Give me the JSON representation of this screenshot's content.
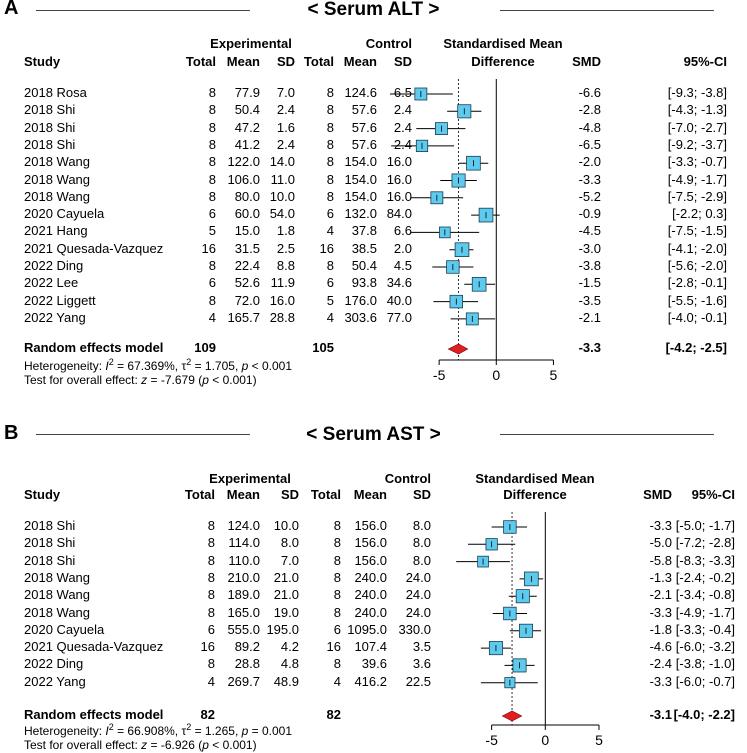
{
  "chart_data": [
    {
      "type": "forest",
      "panel": "A",
      "title": "< Serum ALT >",
      "headers": {
        "study": "Study",
        "experimental": "Experimental",
        "control": "Control",
        "total": "Total",
        "mean": "Mean",
        "sd": "SD",
        "effect_line1": "Standardised Mean",
        "effect_line2": "Difference",
        "smd": "SMD",
        "ci": "95%-CI"
      },
      "rows": [
        {
          "study": "2018 Rosa",
          "e_total": "8",
          "e_mean": "77.9",
          "e_sd": "7.0",
          "c_total": "8",
          "c_mean": "124.6",
          "c_sd": "6.5",
          "smd": -6.6,
          "lo": -9.3,
          "hi": -3.8,
          "weight": 1.0,
          "smd_text": "-6.6",
          "ci_text": "[-9.3; -3.8]"
        },
        {
          "study": "2018 Shi",
          "e_total": "8",
          "e_mean": "50.4",
          "e_sd": "2.4",
          "c_total": "8",
          "c_mean": "57.6",
          "c_sd": "2.4",
          "smd": -2.8,
          "lo": -4.3,
          "hi": -1.3,
          "weight": 1.1,
          "smd_text": "-2.8",
          "ci_text": "[-4.3; -1.3]"
        },
        {
          "study": "2018 Shi",
          "e_total": "8",
          "e_mean": "47.2",
          "e_sd": "1.6",
          "c_total": "8",
          "c_mean": "57.6",
          "c_sd": "2.4",
          "smd": -4.8,
          "lo": -7.0,
          "hi": -2.7,
          "weight": 1.0,
          "smd_text": "-4.8",
          "ci_text": "[-7.0; -2.7]"
        },
        {
          "study": "2018 Shi",
          "e_total": "8",
          "e_mean": "41.2",
          "e_sd": "2.4",
          "c_total": "8",
          "c_mean": "57.6",
          "c_sd": "2.4",
          "smd": -6.5,
          "lo": -9.2,
          "hi": -3.7,
          "weight": 0.95,
          "smd_text": "-6.5",
          "ci_text": "[-9.2; -3.7]"
        },
        {
          "study": "2018 Wang",
          "e_total": "8",
          "e_mean": "122.0",
          "e_sd": "14.0",
          "c_total": "8",
          "c_mean": "154.0",
          "c_sd": "16.0",
          "smd": -2.0,
          "lo": -3.3,
          "hi": -0.7,
          "weight": 1.15,
          "smd_text": "-2.0",
          "ci_text": "[-3.3; -0.7]"
        },
        {
          "study": "2018 Wang",
          "e_total": "8",
          "e_mean": "106.0",
          "e_sd": "11.0",
          "c_total": "8",
          "c_mean": "154.0",
          "c_sd": "16.0",
          "smd": -3.3,
          "lo": -4.9,
          "hi": -1.7,
          "weight": 1.1,
          "smd_text": "-3.3",
          "ci_text": "[-4.9; -1.7]"
        },
        {
          "study": "2018 Wang",
          "e_total": "8",
          "e_mean": "80.0",
          "e_sd": "10.0",
          "c_total": "8",
          "c_mean": "154.0",
          "c_sd": "16.0",
          "smd": -5.2,
          "lo": -7.5,
          "hi": -2.9,
          "weight": 1.0,
          "smd_text": "-5.2",
          "ci_text": "[-7.5; -2.9]"
        },
        {
          "study": "2020 Cayuela",
          "e_total": "6",
          "e_mean": "60.0",
          "e_sd": "54.0",
          "c_total": "6",
          "c_mean": "132.0",
          "c_sd": "84.0",
          "smd": -0.9,
          "lo": -2.2,
          "hi": 0.3,
          "weight": 1.15,
          "smd_text": "-0.9",
          "ci_text": "[-2.2; 0.3]"
        },
        {
          "study": "2021 Hang",
          "e_total": "5",
          "e_mean": "15.0",
          "e_sd": "1.8",
          "c_total": "4",
          "c_mean": "37.8",
          "c_sd": "6.6",
          "smd": -4.5,
          "lo": -7.5,
          "hi": -1.5,
          "weight": 0.9,
          "smd_text": "-4.5",
          "ci_text": "[-7.5; -1.5]"
        },
        {
          "study": "2021 Quesada-Vazquez",
          "e_total": "16",
          "e_mean": "31.5",
          "e_sd": "2.5",
          "c_total": "16",
          "c_mean": "38.5",
          "c_sd": "2.0",
          "smd": -3.0,
          "lo": -4.1,
          "hi": -2.0,
          "weight": 1.15,
          "smd_text": "-3.0",
          "ci_text": "[-4.1; -2.0]"
        },
        {
          "study": "2022 Ding",
          "e_total": "8",
          "e_mean": "22.4",
          "e_sd": "8.8",
          "c_total": "8",
          "c_mean": "50.4",
          "c_sd": "4.5",
          "smd": -3.8,
          "lo": -5.6,
          "hi": -2.0,
          "weight": 1.05,
          "smd_text": "-3.8",
          "ci_text": "[-5.6; -2.0]"
        },
        {
          "study": "2022 Lee",
          "e_total": "6",
          "e_mean": "52.6",
          "e_sd": "11.9",
          "c_total": "6",
          "c_mean": "93.8",
          "c_sd": "34.6",
          "smd": -1.5,
          "lo": -2.8,
          "hi": -0.1,
          "weight": 1.15,
          "smd_text": "-1.5",
          "ci_text": "[-2.8; -0.1]"
        },
        {
          "study": "2022 Liggett",
          "e_total": "8",
          "e_mean": "72.0",
          "e_sd": "16.0",
          "c_total": "5",
          "c_mean": "176.0",
          "c_sd": "40.0",
          "smd": -3.5,
          "lo": -5.5,
          "hi": -1.6,
          "weight": 1.05,
          "smd_text": "-3.5",
          "ci_text": "[-5.5; -1.6]"
        },
        {
          "study": "2022 Yang",
          "e_total": "4",
          "e_mean": "165.7",
          "e_sd": "28.8",
          "c_total": "4",
          "c_mean": "303.6",
          "c_sd": "77.0",
          "smd": -2.1,
          "lo": -4.0,
          "hi": -0.1,
          "weight": 1.0,
          "smd_text": "-2.1",
          "ci_text": "[-4.0; -0.1]"
        }
      ],
      "summary": {
        "label": "Random effects model",
        "e_total": "109",
        "c_total": "105",
        "smd": -3.3,
        "lo": -4.2,
        "hi": -2.5,
        "smd_text": "-3.3",
        "ci_text": "[-4.2; -2.5]"
      },
      "heterogeneity": {
        "prefix": "Heterogeneity: ",
        "i2_symbol": "I",
        "sup": "2",
        "i2_value": " = 67.369%, ",
        "tau_symbol": "τ",
        "tau_value": " = 1.705, ",
        "p_symbol": "p",
        "p_value": " < 0.001"
      },
      "overall_effect": {
        "prefix": "Test for overall effect: ",
        "z_symbol": "z",
        "z_value": " = -7.679 (",
        "p_symbol": "p",
        "p_value": " < 0.001)"
      },
      "xlim": [
        -10,
        6.8
      ],
      "ticks": [
        -5,
        0,
        5
      ],
      "tick_labels": [
        "-5",
        "0",
        "5"
      ]
    },
    {
      "type": "forest",
      "panel": "B",
      "title": "< Serum AST >",
      "headers": {
        "study": "Study",
        "experimental": "Experimental",
        "control": "Control",
        "total": "Total",
        "mean": "Mean",
        "sd": "SD",
        "effect_line1": "Standardised Mean",
        "effect_line2": "Difference",
        "smd": "SMD",
        "ci": "95%-CI"
      },
      "rows": [
        {
          "study": "2018 Shi",
          "e_total": "8",
          "e_mean": "124.0",
          "e_sd": "10.0",
          "c_total": "8",
          "c_mean": "156.0",
          "c_sd": "8.0",
          "smd": -3.3,
          "lo": -5.0,
          "hi": -1.7,
          "weight": 1.05,
          "smd_text": "-3.3",
          "ci_text": "[-5.0; -1.7]"
        },
        {
          "study": "2018 Shi",
          "e_total": "8",
          "e_mean": "114.0",
          "e_sd": "8.0",
          "c_total": "8",
          "c_mean": "156.0",
          "c_sd": "8.0",
          "smd": -5.0,
          "lo": -7.2,
          "hi": -2.8,
          "weight": 0.95,
          "smd_text": "-5.0",
          "ci_text": "[-7.2; -2.8]"
        },
        {
          "study": "2018 Shi",
          "e_total": "8",
          "e_mean": "110.0",
          "e_sd": "7.0",
          "c_total": "8",
          "c_mean": "156.0",
          "c_sd": "8.0",
          "smd": -5.8,
          "lo": -8.3,
          "hi": -3.3,
          "weight": 0.9,
          "smd_text": "-5.8",
          "ci_text": "[-8.3; -3.3]"
        },
        {
          "study": "2018 Wang",
          "e_total": "8",
          "e_mean": "210.0",
          "e_sd": "21.0",
          "c_total": "8",
          "c_mean": "240.0",
          "c_sd": "24.0",
          "smd": -1.3,
          "lo": -2.4,
          "hi": -0.2,
          "weight": 1.15,
          "smd_text": "-1.3",
          "ci_text": "[-2.4; -0.2]"
        },
        {
          "study": "2018 Wang",
          "e_total": "8",
          "e_mean": "189.0",
          "e_sd": "21.0",
          "c_total": "8",
          "c_mean": "240.0",
          "c_sd": "24.0",
          "smd": -2.1,
          "lo": -3.4,
          "hi": -0.8,
          "weight": 1.1,
          "smd_text": "-2.1",
          "ci_text": "[-3.4; -0.8]"
        },
        {
          "study": "2018 Wang",
          "e_total": "8",
          "e_mean": "165.0",
          "e_sd": "19.0",
          "c_total": "8",
          "c_mean": "240.0",
          "c_sd": "24.0",
          "smd": -3.3,
          "lo": -4.9,
          "hi": -1.7,
          "weight": 1.05,
          "smd_text": "-3.3",
          "ci_text": "[-4.9; -1.7]"
        },
        {
          "study": "2020 Cayuela",
          "e_total": "6",
          "e_mean": "555.0",
          "e_sd": "195.0",
          "c_total": "6",
          "c_mean": "1095.0",
          "c_sd": "330.0",
          "smd": -1.8,
          "lo": -3.3,
          "hi": -0.4,
          "weight": 1.1,
          "smd_text": "-1.8",
          "ci_text": "[-3.3; -0.4]"
        },
        {
          "study": "2021 Quesada-Vazquez",
          "e_total": "16",
          "e_mean": "89.2",
          "e_sd": "4.2",
          "c_total": "16",
          "c_mean": "107.4",
          "c_sd": "3.5",
          "smd": -4.6,
          "lo": -6.0,
          "hi": -3.2,
          "weight": 1.1,
          "smd_text": "-4.6",
          "ci_text": "[-6.0; -3.2]"
        },
        {
          "study": "2022 Ding",
          "e_total": "8",
          "e_mean": "28.8",
          "e_sd": "4.8",
          "c_total": "8",
          "c_mean": "39.6",
          "c_sd": "3.6",
          "smd": -2.4,
          "lo": -3.8,
          "hi": -1.0,
          "weight": 1.1,
          "smd_text": "-2.4",
          "ci_text": "[-3.8; -1.0]"
        },
        {
          "study": "2022 Yang",
          "e_total": "4",
          "e_mean": "269.7",
          "e_sd": "48.9",
          "c_total": "4",
          "c_mean": "416.2",
          "c_sd": "22.5",
          "smd": -3.3,
          "lo": -6.0,
          "hi": -0.7,
          "weight": 0.85,
          "smd_text": "-3.3",
          "ci_text": "[-6.0; -0.7]"
        }
      ],
      "summary": {
        "label": "Random effects model",
        "e_total": "82",
        "c_total": "82",
        "smd": -3.1,
        "lo": -4.0,
        "hi": -2.2,
        "smd_text": "-3.1",
        "ci_text": "[-4.0; -2.2]"
      },
      "heterogeneity": {
        "prefix": "Heterogeneity: ",
        "i2_symbol": "I",
        "sup": "2",
        "i2_value": " = 66.908%, ",
        "tau_symbol": "τ",
        "tau_value": " = 1.265, ",
        "p_symbol": "p",
        "p_value": " = 0.001"
      },
      "overall_effect": {
        "prefix": "Test for overall effect: ",
        "z_symbol": "z",
        "z_value": " = -6.926 (",
        "p_symbol": "p",
        "p_value": " < 0.001)"
      },
      "xlim": [
        -8.6,
        6.4
      ],
      "ticks": [
        -5,
        0,
        5
      ],
      "tick_labels": [
        "-5",
        "0",
        "5"
      ]
    }
  ],
  "colors": {
    "box_fill": "#5ecbee",
    "box_stroke": "#1a3e4f",
    "diamond": "#e02020",
    "line": "#000000"
  }
}
